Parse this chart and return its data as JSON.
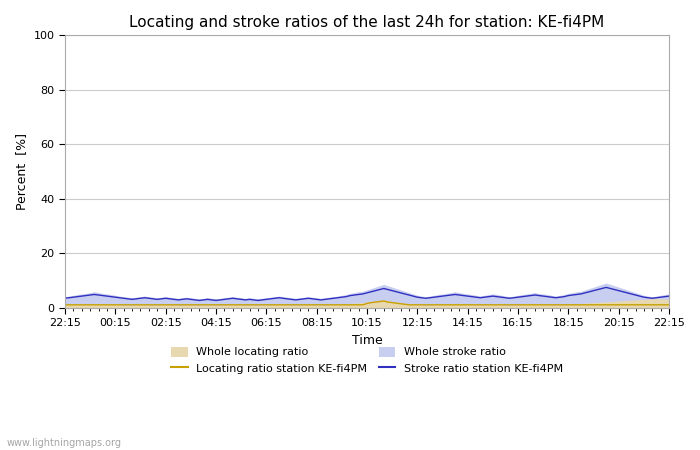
{
  "title": "Locating and stroke ratios of the last 24h for station: KE-fi4PM",
  "xlabel": "Time",
  "ylabel": "Percent  [%]",
  "ylim": [
    0,
    100
  ],
  "yticks": [
    0,
    20,
    40,
    60,
    80,
    100
  ],
  "x_labels": [
    "22:15",
    "00:15",
    "02:15",
    "04:15",
    "06:15",
    "08:15",
    "10:15",
    "12:15",
    "14:15",
    "16:15",
    "18:15",
    "20:15",
    "22:15"
  ],
  "bg_color": "#ffffff",
  "plot_bg_color": "#ffffff",
  "grid_color": "#cccccc",
  "watermark": "www.lightningmaps.org",
  "whole_locating_fill_color": "#e8d8b0",
  "whole_stroke_fill_color": "#c8cef0",
  "locating_line_color": "#c8a000",
  "stroke_line_color": "#3030c0",
  "title_fontsize": 11,
  "axis_fontsize": 9,
  "tick_fontsize": 8,
  "n_points": 145,
  "whole_locating_ratio": [
    1.2,
    1.3,
    1.2,
    1.1,
    1.0,
    1.1,
    1.2,
    1.3,
    1.2,
    1.1,
    1.0,
    1.1,
    1.2,
    1.0,
    0.9,
    0.8,
    0.9,
    1.0,
    1.1,
    1.0,
    0.9,
    0.8,
    0.9,
    1.0,
    1.1,
    1.0,
    0.9,
    0.8,
    0.9,
    1.0,
    0.9,
    0.8,
    0.7,
    0.8,
    0.9,
    0.8,
    0.7,
    0.8,
    0.9,
    1.0,
    1.1,
    1.0,
    0.9,
    0.8,
    0.9,
    0.8,
    0.7,
    0.8,
    0.9,
    1.0,
    1.1,
    1.2,
    1.1,
    1.0,
    0.9,
    0.8,
    0.9,
    1.0,
    1.1,
    1.0,
    0.9,
    0.8,
    0.9,
    1.0,
    1.1,
    1.2,
    1.3,
    1.4,
    1.5,
    1.6,
    1.7,
    1.8,
    2.0,
    2.2,
    2.4,
    2.6,
    2.8,
    2.5,
    2.2,
    2.0,
    1.8,
    1.6,
    1.4,
    1.2,
    1.0,
    0.9,
    0.8,
    0.9,
    1.0,
    1.1,
    1.2,
    1.3,
    1.4,
    1.5,
    1.4,
    1.3,
    1.2,
    1.1,
    1.0,
    0.9,
    1.0,
    1.1,
    1.2,
    1.1,
    1.0,
    0.9,
    0.8,
    0.9,
    1.0,
    1.1,
    1.2,
    1.3,
    1.4,
    1.3,
    1.2,
    1.1,
    1.0,
    0.9,
    1.0,
    1.1,
    1.2,
    1.3,
    1.4,
    1.5,
    1.6,
    1.7,
    1.8,
    1.9,
    2.0,
    2.1,
    2.2,
    2.3,
    2.4,
    2.5,
    2.6,
    2.7,
    2.8,
    2.9,
    3.0,
    3.1,
    3.2,
    3.3,
    3.2,
    3.1,
    3.0
  ],
  "whole_stroke_ratio": [
    4.0,
    4.2,
    4.5,
    4.8,
    5.0,
    5.2,
    5.5,
    5.8,
    5.5,
    5.2,
    5.0,
    4.8,
    4.5,
    4.2,
    4.0,
    3.8,
    3.6,
    3.8,
    4.0,
    4.2,
    4.0,
    3.8,
    3.6,
    3.8,
    4.0,
    3.8,
    3.6,
    3.4,
    3.6,
    3.8,
    3.6,
    3.4,
    3.2,
    3.4,
    3.6,
    3.4,
    3.2,
    3.4,
    3.6,
    3.8,
    4.0,
    3.8,
    3.6,
    3.4,
    3.6,
    3.4,
    3.2,
    3.4,
    3.6,
    3.8,
    4.0,
    4.2,
    4.0,
    3.8,
    3.6,
    3.4,
    3.6,
    3.8,
    4.0,
    3.8,
    3.6,
    3.4,
    3.6,
    3.8,
    4.0,
    4.2,
    4.5,
    4.8,
    5.2,
    5.5,
    5.8,
    6.0,
    6.5,
    7.0,
    7.5,
    8.0,
    8.5,
    8.0,
    7.5,
    7.0,
    6.5,
    6.0,
    5.5,
    5.0,
    4.5,
    4.2,
    4.0,
    4.2,
    4.5,
    4.8,
    5.0,
    5.2,
    5.5,
    5.8,
    5.5,
    5.2,
    5.0,
    4.8,
    4.5,
    4.2,
    4.5,
    4.8,
    5.0,
    4.8,
    4.5,
    4.2,
    4.0,
    4.2,
    4.5,
    4.8,
    5.0,
    5.2,
    5.5,
    5.2,
    5.0,
    4.8,
    4.5,
    4.2,
    4.5,
    4.8,
    5.2,
    5.5,
    5.8,
    6.0,
    6.5,
    7.0,
    7.5,
    8.0,
    8.5,
    9.0,
    8.5,
    8.0,
    7.5,
    7.0,
    6.5,
    6.0,
    5.5,
    5.0,
    4.5,
    4.2,
    4.0,
    4.2,
    4.5,
    4.8,
    5.0
  ],
  "locating_line": [
    1.0,
    1.0,
    1.0,
    1.0,
    1.0,
    1.0,
    1.0,
    1.0,
    1.0,
    1.0,
    1.0,
    1.0,
    1.0,
    1.0,
    1.0,
    1.0,
    1.0,
    1.0,
    1.0,
    1.0,
    1.0,
    1.0,
    1.0,
    1.0,
    1.0,
    1.0,
    1.0,
    1.0,
    1.0,
    1.0,
    1.0,
    1.0,
    1.0,
    1.0,
    1.0,
    1.0,
    1.0,
    1.0,
    1.0,
    1.0,
    1.0,
    1.0,
    1.0,
    1.0,
    1.0,
    1.0,
    1.0,
    1.0,
    1.0,
    1.0,
    1.0,
    1.0,
    1.0,
    1.0,
    1.0,
    1.0,
    1.0,
    1.0,
    1.0,
    1.0,
    1.0,
    1.0,
    1.0,
    1.0,
    1.0,
    1.0,
    1.0,
    1.0,
    1.0,
    1.0,
    1.0,
    1.0,
    1.5,
    1.8,
    2.0,
    2.2,
    2.4,
    2.0,
    1.8,
    1.6,
    1.4,
    1.2,
    1.0,
    1.0,
    1.0,
    1.0,
    1.0,
    1.0,
    1.0,
    1.0,
    1.0,
    1.0,
    1.0,
    1.0,
    1.0,
    1.0,
    1.0,
    1.0,
    1.0,
    1.0,
    1.0,
    1.0,
    1.0,
    1.0,
    1.0,
    1.0,
    1.0,
    1.0,
    1.0,
    1.0,
    1.0,
    1.0,
    1.0,
    1.0,
    1.0,
    1.0,
    1.0,
    1.0,
    1.0,
    1.0,
    1.0,
    1.0,
    1.0,
    1.0,
    1.0,
    1.0,
    1.0,
    1.0,
    1.0,
    1.0,
    1.0,
    1.0,
    1.0,
    1.0,
    1.0,
    1.0,
    1.0,
    1.0,
    1.0,
    1.0,
    1.0,
    1.0,
    1.0,
    1.0,
    1.0
  ],
  "stroke_line": [
    3.5,
    3.6,
    3.8,
    4.0,
    4.2,
    4.4,
    4.6,
    4.8,
    4.6,
    4.4,
    4.2,
    4.0,
    3.8,
    3.6,
    3.4,
    3.2,
    3.0,
    3.2,
    3.4,
    3.6,
    3.4,
    3.2,
    3.0,
    3.2,
    3.4,
    3.2,
    3.0,
    2.8,
    3.0,
    3.2,
    3.0,
    2.8,
    2.6,
    2.8,
    3.0,
    2.8,
    2.6,
    2.8,
    3.0,
    3.2,
    3.4,
    3.2,
    3.0,
    2.8,
    3.0,
    2.8,
    2.6,
    2.8,
    3.0,
    3.2,
    3.4,
    3.6,
    3.4,
    3.2,
    3.0,
    2.8,
    3.0,
    3.2,
    3.4,
    3.2,
    3.0,
    2.8,
    3.0,
    3.2,
    3.4,
    3.6,
    3.8,
    4.0,
    4.4,
    4.6,
    4.8,
    5.0,
    5.4,
    5.8,
    6.2,
    6.6,
    7.0,
    6.6,
    6.2,
    5.8,
    5.4,
    5.0,
    4.6,
    4.2,
    3.8,
    3.6,
    3.4,
    3.6,
    3.8,
    4.0,
    4.2,
    4.4,
    4.6,
    4.8,
    4.6,
    4.4,
    4.2,
    4.0,
    3.8,
    3.6,
    3.8,
    4.0,
    4.2,
    4.0,
    3.8,
    3.6,
    3.4,
    3.6,
    3.8,
    4.0,
    4.2,
    4.4,
    4.6,
    4.4,
    4.2,
    4.0,
    3.8,
    3.6,
    3.8,
    4.0,
    4.4,
    4.6,
    4.8,
    5.0,
    5.4,
    5.8,
    6.2,
    6.6,
    7.0,
    7.4,
    7.0,
    6.6,
    6.2,
    5.8,
    5.4,
    5.0,
    4.6,
    4.2,
    3.8,
    3.6,
    3.4,
    3.6,
    3.8,
    4.0,
    4.2
  ]
}
